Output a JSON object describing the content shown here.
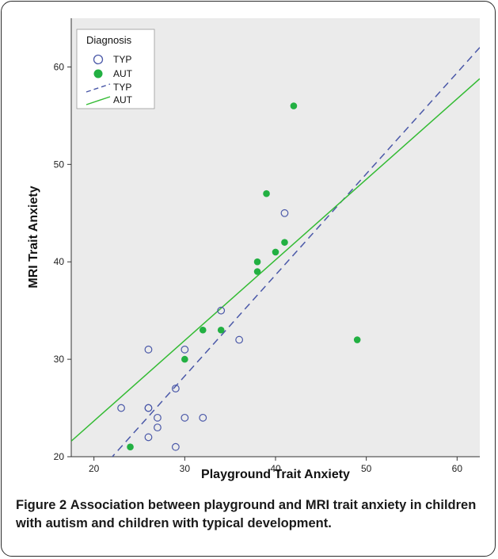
{
  "chart_data": {
    "type": "scatter",
    "xlabel": "Playground Trait Anxiety",
    "ylabel": "MRI Trait Anxiety",
    "xlim": [
      17.5,
      62.5
    ],
    "ylim": [
      20,
      65
    ],
    "xticks": [
      20,
      30,
      40,
      50,
      60
    ],
    "yticks": [
      20,
      30,
      40,
      50,
      60
    ],
    "grid": false,
    "legend": {
      "title": "Diagnosis",
      "placement": "top-left",
      "entries": [
        {
          "label": "TYP",
          "kind": "open-circle"
        },
        {
          "label": "AUT",
          "kind": "filled-circle"
        },
        {
          "label": "TYP",
          "kind": "dashed-line"
        },
        {
          "label": "AUT",
          "kind": "solid-line"
        }
      ]
    },
    "colors": {
      "TYP": "#4a58a8",
      "AUT": "#22b042",
      "AUT_line": "#33bb33",
      "plot_bg": "#ebebeb"
    },
    "series": [
      {
        "name": "TYP",
        "points": [
          {
            "x": 23,
            "y": 25
          },
          {
            "x": 26,
            "y": 31
          },
          {
            "x": 26,
            "y": 25
          },
          {
            "x": 26,
            "y": 25
          },
          {
            "x": 26,
            "y": 22
          },
          {
            "x": 27,
            "y": 24
          },
          {
            "x": 27,
            "y": 23
          },
          {
            "x": 29,
            "y": 27
          },
          {
            "x": 29,
            "y": 21
          },
          {
            "x": 30,
            "y": 31
          },
          {
            "x": 30,
            "y": 24
          },
          {
            "x": 32,
            "y": 24
          },
          {
            "x": 34,
            "y": 35
          },
          {
            "x": 36,
            "y": 32
          },
          {
            "x": 41,
            "y": 45
          }
        ]
      },
      {
        "name": "AUT",
        "points": [
          {
            "x": 24,
            "y": 21
          },
          {
            "x": 30,
            "y": 30
          },
          {
            "x": 32,
            "y": 33
          },
          {
            "x": 34,
            "y": 33
          },
          {
            "x": 38,
            "y": 40
          },
          {
            "x": 38,
            "y": 39
          },
          {
            "x": 39,
            "y": 47
          },
          {
            "x": 40,
            "y": 41
          },
          {
            "x": 41,
            "y": 42
          },
          {
            "x": 42,
            "y": 56
          },
          {
            "x": 49,
            "y": 32
          }
        ]
      }
    ],
    "fit_lines": [
      {
        "name": "TYP",
        "style": "dashed",
        "x": [
          20.0,
          62.5
        ],
        "y": [
          17.9,
          62.0
        ]
      },
      {
        "name": "AUT",
        "style": "solid",
        "x": [
          17.5,
          62.5
        ],
        "y": [
          21.6,
          58.8
        ]
      }
    ]
  },
  "caption": {
    "label": "Figure 2",
    "text": "Association between playground and MRI trait anxiety in children with autism and children with typical development."
  }
}
